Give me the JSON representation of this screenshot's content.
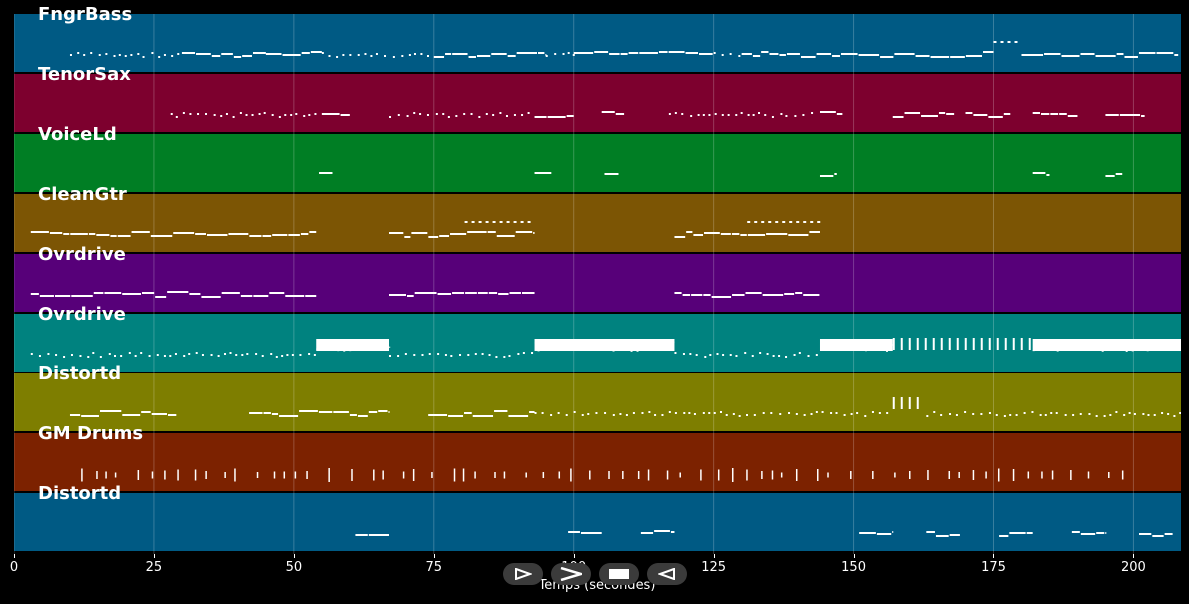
{
  "tracks": [
    {
      "name": "FngrBass",
      "color": "#005a84"
    },
    {
      "name": "TenorSax",
      "color": "#7d002e"
    },
    {
      "name": "VoiceLd",
      "color": "#007e24"
    },
    {
      "name": "CleanGtr",
      "color": "#7c5504"
    },
    {
      "name": "Ovrdrive",
      "color": "#570079"
    },
    {
      "name": "Ovrdrive",
      "color": "#00827f"
    },
    {
      "name": "Distortd",
      "color": "#7e7e00"
    },
    {
      "name": "GM Drums",
      "color": "#7c2200"
    },
    {
      "name": "Distortd",
      "color": "#005a84"
    }
  ],
  "axis": {
    "ticks": [
      "0",
      "25",
      "50",
      "75",
      "100",
      "125",
      "150",
      "175",
      "200"
    ],
    "min": 0,
    "max": 208.5,
    "label": "Temps (secondes)"
  },
  "controls": {
    "play_icon": "play-outline-icon",
    "forward_icon": "forward-icon",
    "stop_icon": "stop-icon",
    "back_icon": "back-icon"
  },
  "chart_data": {
    "type": "piano-roll",
    "x_unit": "seconds",
    "xlim": [
      0,
      208.5
    ],
    "note_segments": [
      {
        "track": 0,
        "notes": [
          [
            10,
            30,
            1
          ],
          [
            30,
            45,
            2
          ],
          [
            45,
            55,
            2
          ],
          [
            55,
            75,
            1
          ],
          [
            75,
            95,
            2
          ],
          [
            95,
            100,
            1
          ],
          [
            100,
            125,
            2
          ],
          [
            125,
            130,
            1
          ],
          [
            130,
            175,
            2
          ],
          [
            175,
            180,
            3
          ],
          [
            180,
            208,
            2
          ]
        ]
      },
      {
        "track": 1,
        "notes": [
          [
            28,
            54,
            1
          ],
          [
            55,
            60,
            2
          ],
          [
            67,
            92,
            1
          ],
          [
            93,
            100,
            2
          ],
          [
            105,
            109,
            2
          ],
          [
            117,
            143,
            1
          ],
          [
            144,
            148,
            2
          ],
          [
            157,
            168,
            2
          ],
          [
            170,
            178,
            2
          ],
          [
            182,
            190,
            2
          ],
          [
            195,
            202,
            2
          ]
        ]
      },
      {
        "track": 2,
        "notes": [
          [
            54.5,
            57,
            2
          ],
          [
            93,
            96,
            2
          ],
          [
            105.5,
            108,
            2
          ],
          [
            144,
            147,
            2
          ],
          [
            182,
            185,
            2
          ],
          [
            195,
            198,
            2
          ]
        ]
      },
      {
        "track": 3,
        "notes": [
          [
            3,
            54,
            2
          ],
          [
            67,
            93,
            2
          ],
          [
            80.5,
            92.5,
            3
          ],
          [
            118,
            144,
            2
          ],
          [
            131,
            144,
            3
          ]
        ]
      },
      {
        "track": 4,
        "notes": [
          [
            3,
            54,
            2
          ],
          [
            67,
            93,
            2
          ],
          [
            118,
            144,
            2
          ]
        ]
      },
      {
        "track": 5,
        "notes": [
          [
            3,
            54,
            1
          ],
          [
            54,
            67,
            4
          ],
          [
            67,
            93,
            1
          ],
          [
            93,
            118,
            4
          ],
          [
            118,
            144,
            1
          ],
          [
            144,
            157,
            4
          ],
          [
            157,
            182,
            5
          ],
          [
            182,
            208.5,
            4
          ]
        ]
      },
      {
        "track": 6,
        "notes": [
          [
            10,
            29,
            2
          ],
          [
            42,
            67,
            2
          ],
          [
            74,
            93,
            2
          ],
          [
            93,
            157,
            1
          ],
          [
            157,
            162,
            5
          ],
          [
            163,
            208.5,
            1
          ]
        ]
      },
      {
        "track": 7,
        "notes": [
          [
            12,
            200,
            6
          ]
        ]
      },
      {
        "track": 8,
        "notes": [
          [
            61,
            67,
            2
          ],
          [
            99,
            105,
            2
          ],
          [
            112,
            118,
            2
          ],
          [
            151,
            157,
            2
          ],
          [
            163,
            169,
            2
          ],
          [
            176,
            182,
            2
          ],
          [
            189,
            195,
            2
          ],
          [
            201,
            207,
            2
          ]
        ]
      }
    ]
  }
}
